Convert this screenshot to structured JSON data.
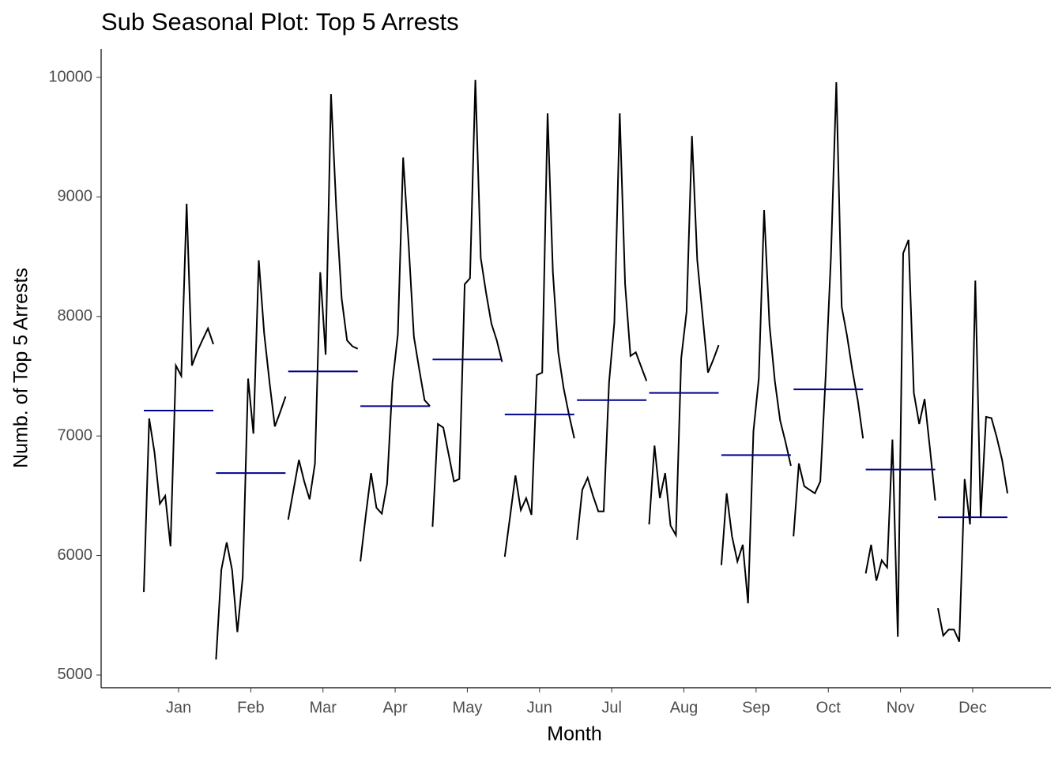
{
  "chart_data": {
    "type": "subseries",
    "title": "Sub Seasonal Plot: Top 5 Arrests",
    "x_label": "Month",
    "y_label": "Numb. of Top 5 Arrests",
    "categories": [
      "Jan",
      "Feb",
      "Mar",
      "Apr",
      "May",
      "Jun",
      "Jul",
      "Aug",
      "Sep",
      "Oct",
      "Nov",
      "Dec"
    ],
    "values": [
      [
        5694,
        7147,
        6863,
        6433,
        6499,
        6077,
        7589,
        7503,
        8943,
        7589,
        7708,
        7807,
        7900,
        7768
      ],
      [
        5130,
        5880,
        6110,
        5880,
        5360,
        5820,
        7480,
        7020,
        8470,
        7860,
        7450,
        7080,
        7200,
        7330
      ],
      [
        6300,
        6550,
        6800,
        6620,
        6470,
        6770,
        8370,
        7680,
        9860,
        8900,
        8150,
        7800,
        7750,
        7730
      ],
      [
        5950,
        6330,
        6690,
        6400,
        6350,
        6600,
        7450,
        7850,
        9330,
        8620,
        7830,
        7560,
        7300,
        7250
      ],
      [
        6240,
        7100,
        7070,
        6850,
        6620,
        6640,
        8270,
        8320,
        9980,
        8490,
        8200,
        7940,
        7800,
        7620
      ],
      [
        5990,
        6330,
        6670,
        6380,
        6480,
        6340,
        7510,
        7530,
        9700,
        8370,
        7700,
        7400,
        7180,
        6980
      ],
      [
        6130,
        6550,
        6650,
        6500,
        6370,
        6370,
        7450,
        7950,
        9700,
        8270,
        7670,
        7700,
        7580,
        7460
      ],
      [
        6260,
        6920,
        6480,
        6690,
        6250,
        6170,
        7650,
        8040,
        9510,
        8470,
        8000,
        7530,
        7640,
        7760
      ],
      [
        5920,
        6520,
        6160,
        5950,
        6090,
        5600,
        7040,
        7480,
        8890,
        7930,
        7460,
        7130,
        6950,
        6750
      ],
      [
        6160,
        6770,
        6580,
        6550,
        6520,
        6620,
        7500,
        8500,
        9960,
        8080,
        7840,
        7550,
        7300,
        6980
      ],
      [
        5850,
        6090,
        5790,
        5960,
        5900,
        6970,
        5320,
        8530,
        8640,
        7360,
        7100,
        7310,
        6900,
        6460
      ],
      [
        5560,
        5330,
        5380,
        5380,
        5280,
        6640,
        6260,
        8300,
        6320,
        7160,
        7150,
        6990,
        6800,
        6520
      ]
    ],
    "means": [
      7213,
      6690,
      7540,
      7250,
      7640,
      7180,
      7300,
      7360,
      6840,
      7390,
      6720,
      6320
    ],
    "color": "#000000",
    "mean_color": "#00008b",
    "ylim": [
      4894,
      10238
    ],
    "yticks": [
      5000,
      6000,
      7000,
      8000,
      9000,
      10000
    ]
  }
}
